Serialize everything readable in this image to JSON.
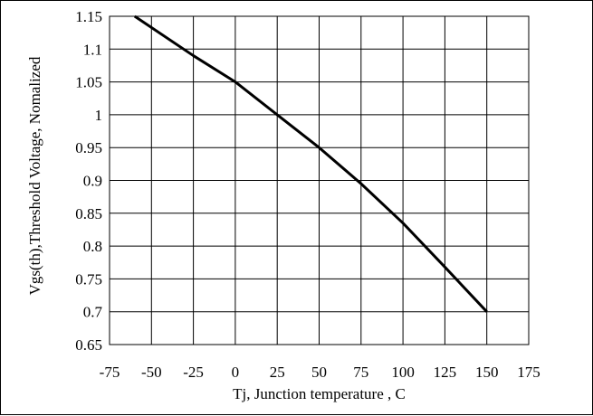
{
  "chart_data": {
    "type": "line",
    "title": "",
    "xlabel": "Tj, Junction temperature , C",
    "ylabel": "Vgs(th),Threshold Voltage, Nomalized",
    "xlim": [
      -75,
      175
    ],
    "ylim": [
      0.65,
      1.15
    ],
    "xticks": [
      -75,
      -50,
      -25,
      0,
      25,
      50,
      75,
      100,
      125,
      150,
      175
    ],
    "yticks": [
      0.65,
      0.7,
      0.75,
      0.8,
      0.85,
      0.9,
      0.95,
      1,
      1.05,
      1.1,
      1.15
    ],
    "xtick_labels": [
      "-75",
      "-50",
      "-25",
      "0",
      "25",
      "50",
      "75",
      "100",
      "125",
      "150",
      "175"
    ],
    "ytick_labels": [
      "0.65",
      "0.7",
      "0.75",
      "0.8",
      "0.85",
      "0.9",
      "0.95",
      "1",
      "1.05",
      "1.1",
      "1.15"
    ],
    "grid": true,
    "series": [
      {
        "x": [
          -60,
          -25,
          0,
          25,
          50,
          75,
          100,
          125,
          150
        ],
        "values": [
          1.15,
          1.09,
          1.05,
          1.0,
          0.95,
          0.895,
          0.835,
          0.768,
          0.7
        ]
      }
    ]
  }
}
